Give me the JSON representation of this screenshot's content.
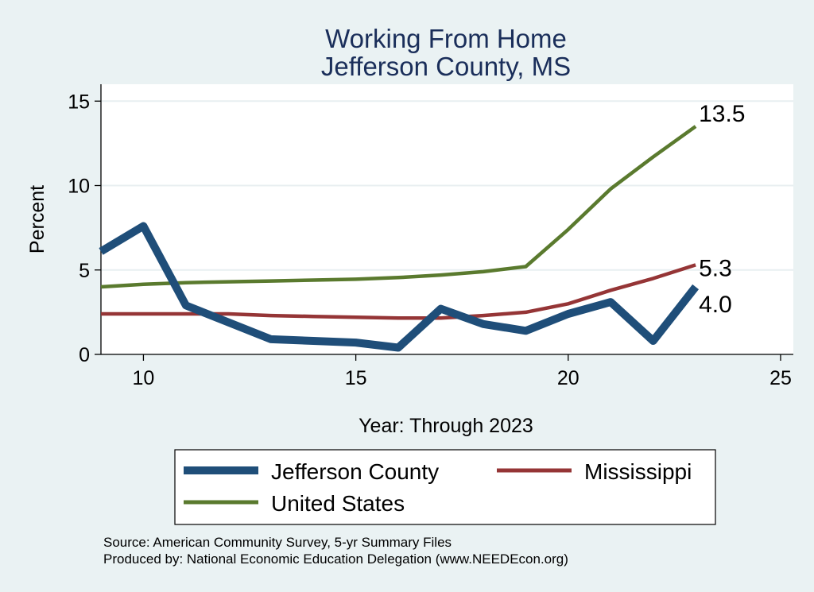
{
  "chart_data": {
    "type": "line",
    "title": [
      "Working From Home",
      "Jefferson County, MS"
    ],
    "xlabel": "Year: Through 2023",
    "ylabel": "Percent",
    "xlim": [
      9,
      25.3
    ],
    "ylim": [
      0,
      16
    ],
    "xticks": [
      "10",
      "15",
      "20",
      "25"
    ],
    "yticks": [
      "0",
      "5",
      "10",
      "15"
    ],
    "grid": true,
    "legend_position": "bottom",
    "series": [
      {
        "name": "Jefferson County",
        "color": "#1f4e79",
        "x": [
          9,
          10,
          11,
          12,
          13,
          14,
          15,
          16,
          17,
          18,
          19,
          20,
          21,
          22,
          23
        ],
        "y": [
          6.1,
          7.6,
          2.9,
          1.9,
          0.9,
          0.8,
          0.7,
          0.4,
          2.7,
          1.8,
          1.4,
          2.4,
          3.1,
          0.8,
          4.0
        ],
        "end_label": "4.0"
      },
      {
        "name": "Mississippi",
        "color": "#953536",
        "x": [
          9,
          10,
          11,
          12,
          13,
          14,
          15,
          16,
          17,
          18,
          19,
          20,
          21,
          22,
          23
        ],
        "y": [
          2.4,
          2.4,
          2.4,
          2.4,
          2.3,
          2.25,
          2.2,
          2.15,
          2.15,
          2.3,
          2.5,
          3.0,
          3.8,
          4.5,
          5.3
        ],
        "end_label": "5.3"
      },
      {
        "name": "United States",
        "color": "#5a7a2e",
        "x": [
          9,
          10,
          11,
          12,
          13,
          14,
          15,
          16,
          17,
          18,
          19,
          20,
          21,
          22,
          23
        ],
        "y": [
          4.0,
          4.15,
          4.25,
          4.3,
          4.35,
          4.4,
          4.45,
          4.55,
          4.7,
          4.9,
          5.2,
          7.4,
          9.8,
          11.7,
          13.5
        ],
        "end_label": "13.5"
      }
    ],
    "notes": [
      "Source: American Community Survey, 5-yr Summary Files",
      "Produced by: National Economic Education Delegation (www.NEEDEcon.org)"
    ]
  }
}
